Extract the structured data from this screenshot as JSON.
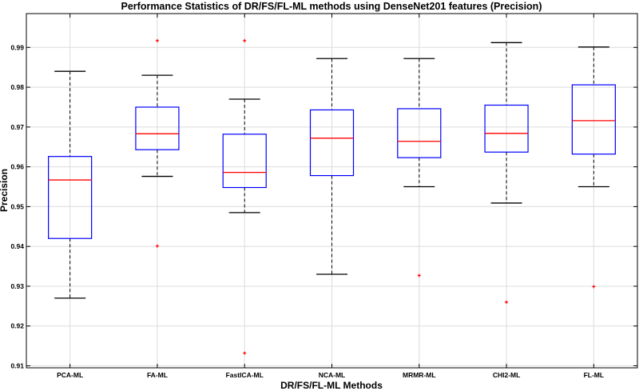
{
  "chart_data": {
    "type": "box",
    "title": "Performance Statistics of DR/FS/FL-ML methods using DenseNet201 features (Precision)",
    "xlabel": "DR/FS/FL-ML Methods",
    "ylabel": "Precision",
    "ylim": [
      0.9095,
      0.9985
    ],
    "yticks": [
      "0.91",
      "0.92",
      "0.93",
      "0.94",
      "0.95",
      "0.96",
      "0.97",
      "0.98",
      "0.99"
    ],
    "grid": true,
    "categories": [
      "PCA-ML",
      "FA-ML",
      "FastICA-ML",
      "NCA-ML",
      "MRMR-ML",
      "CHI2-ML",
      "FL-ML"
    ],
    "boxes": [
      {
        "whisker_low": 0.927,
        "q1": 0.942,
        "median": 0.9567,
        "q3": 0.9626,
        "whisker_high": 0.984,
        "outliers": []
      },
      {
        "whisker_low": 0.9576,
        "q1": 0.9643,
        "median": 0.9683,
        "q3": 0.975,
        "whisker_high": 0.983,
        "outliers": [
          0.9917,
          0.9401
        ]
      },
      {
        "whisker_low": 0.9485,
        "q1": 0.9548,
        "median": 0.9586,
        "q3": 0.9682,
        "whisker_high": 0.977,
        "outliers": [
          0.9917,
          0.9132
        ]
      },
      {
        "whisker_low": 0.933,
        "q1": 0.9578,
        "median": 0.9672,
        "q3": 0.9743,
        "whisker_high": 0.9872,
        "outliers": []
      },
      {
        "whisker_low": 0.955,
        "q1": 0.9623,
        "median": 0.9664,
        "q3": 0.9746,
        "whisker_high": 0.9872,
        "outliers": [
          0.9327
        ]
      },
      {
        "whisker_low": 0.9509,
        "q1": 0.9637,
        "median": 0.9684,
        "q3": 0.9755,
        "whisker_high": 0.9912,
        "outliers": [
          0.926
        ]
      },
      {
        "whisker_low": 0.955,
        "q1": 0.9632,
        "median": 0.9716,
        "q3": 0.9806,
        "whisker_high": 0.9901,
        "outliers": [
          0.9299
        ]
      }
    ],
    "colors": {
      "box": "#0000ff",
      "median": "#ff0000",
      "whisker": "#000000",
      "outlier": "#ff0000",
      "grid": "#dcdcdc"
    }
  }
}
